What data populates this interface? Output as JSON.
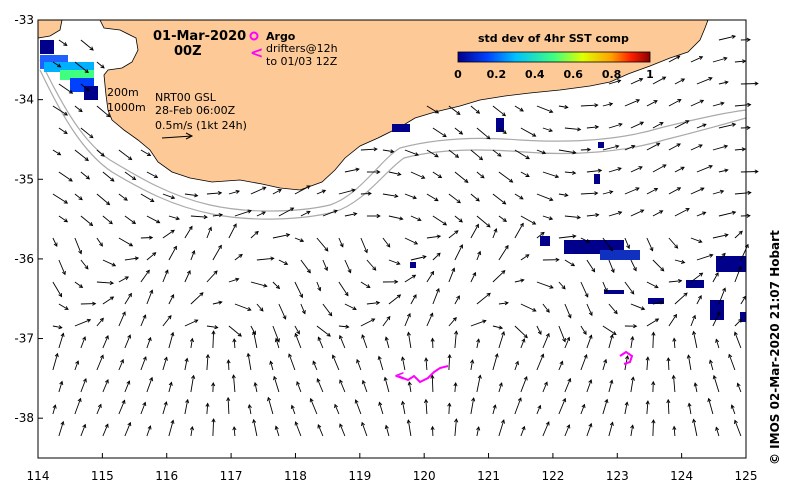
{
  "header": {
    "date": "01-Mar-2020",
    "time": "00Z"
  },
  "legend": {
    "argo_label": "Argo",
    "drifters_label": "drifters@12h",
    "drifters_to": "to 01/03 12Z",
    "colorbar_title": "std dev of 4hr SST comp",
    "colorbar_ticks": [
      "0",
      "0.2",
      "0.4",
      "0.6",
      "0.8",
      "1"
    ],
    "colorbar_colors": [
      "#00008b",
      "#0040ff",
      "#00c0ff",
      "#40ff80",
      "#e0ff00",
      "#ffa000",
      "#ff2000",
      "#8b0000"
    ]
  },
  "annotations": {
    "isobath_1": "200m",
    "isobath_2": "1000m",
    "product": "NRT00 GSL",
    "product_date": "28-Feb 06:00Z",
    "scale": "0.5m/s (1kt 24h)"
  },
  "credit": "©  IMOS 02-Mar-2020 21:07 Hobart",
  "axes": {
    "x_ticks": [
      "114",
      "115",
      "116",
      "117",
      "118",
      "119",
      "120",
      "121",
      "122",
      "123",
      "124",
      "125"
    ],
    "y_ticks": [
      "-33",
      "-34",
      "-35",
      "-36",
      "-37",
      "-38"
    ],
    "xlim": [
      114,
      125
    ],
    "ylim": [
      -38.5,
      -33
    ]
  },
  "colors": {
    "land": "#fcc997",
    "isobath": "#aaaaaa",
    "drifter": "#ff00ff",
    "argo": "#ff00ff"
  }
}
